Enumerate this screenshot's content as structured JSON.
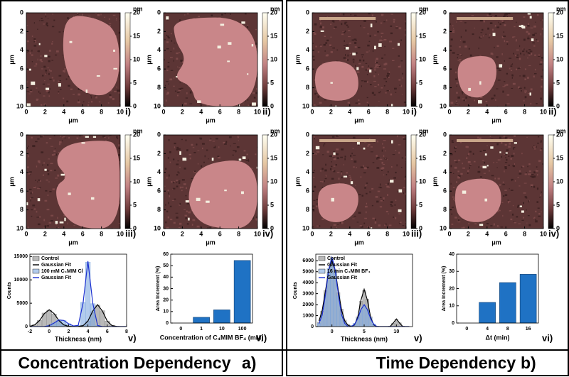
{
  "sections": [
    {
      "title": "Concentration Dependency",
      "letter": "a)",
      "maps": {
        "labels": [
          "i)",
          "ii)",
          "iii)",
          "iv)"
        ],
        "xlabel": "μm",
        "ylabel": "μm",
        "xlim": [
          0,
          10
        ],
        "ylim": [
          0,
          10
        ],
        "xticks": [
          0,
          2,
          4,
          6,
          8,
          10
        ],
        "yticks": [
          0,
          2,
          4,
          6,
          8,
          10
        ],
        "colorbar": {
          "unit": "nm",
          "lim": [
            0,
            20
          ],
          "ticks": [
            0,
            5,
            10,
            15,
            20
          ]
        }
      },
      "histogram": {
        "type": "histogram",
        "label": "v)",
        "xlabel": "Thickness (nm)",
        "ylabel": "Counts",
        "xlim": [
          -2,
          8
        ],
        "ylim": [
          0,
          15500
        ],
        "xticks": [
          -2,
          0,
          2,
          4,
          6,
          8
        ],
        "yticks": [
          0,
          5000,
          10000,
          15000
        ],
        "x": [
          -2,
          -1.5,
          -1,
          -0.5,
          0,
          0.5,
          1,
          1.5,
          2,
          2.5,
          3,
          3.5,
          4,
          4.5,
          5,
          5.5,
          6,
          6.5,
          7,
          7.5,
          8
        ],
        "series": [
          {
            "name": "Control",
            "style": "bars",
            "color": "#8a8a8a",
            "values": [
              100,
              400,
              1300,
              2900,
              3500,
              2700,
              1200,
              400,
              100,
              50,
              100,
              300,
              1200,
              3200,
              4600,
              3400,
              1200,
              300,
              100,
              0,
              0
            ]
          },
          {
            "name": "Gaussian Fit",
            "style": "line",
            "color": "#000000",
            "values": [
              61,
              360,
              1296,
              2790,
              3600,
              2790,
              1296,
              360,
              61,
              0,
              19,
              207,
              1175,
              3323,
              4700,
              3323,
              1175,
              207,
              19,
              0,
              0
            ]
          },
          {
            "name": "100 mM C₄MIM Cl",
            "style": "bars",
            "color": "#7fa8e0",
            "values": [
              0,
              0,
              0,
              50,
              250,
              800,
              1400,
              1300,
              600,
              150,
              300,
              5200,
              13800,
              4900,
              250,
              0,
              0,
              0,
              0,
              0,
              0
            ]
          },
          {
            "name": "Gaussian Fit",
            "style": "line",
            "color": "#1a2fd0",
            "values": [
              0,
              0,
              0,
              27,
              203,
              759,
              1419,
              1324,
              615,
              143,
              255,
              5040,
              14000,
              5040,
              238,
              0,
              0,
              0,
              0,
              0,
              0
            ]
          }
        ]
      },
      "bar": {
        "type": "bar",
        "label": "vi)",
        "xlabel": "Concentration of C₄MIM BF₄ (mM)",
        "ylabel": "Area Increment (%)",
        "categories": [
          "0",
          "1",
          "10",
          "100"
        ],
        "values": [
          0,
          5,
          11.5,
          54.5
        ],
        "color": "#1f72c4",
        "ylim": [
          0,
          60
        ],
        "yticks": [
          0,
          10,
          20,
          30,
          40,
          50,
          60
        ]
      }
    },
    {
      "title": "Time Dependency",
      "letter": "b)",
      "maps": {
        "labels": [
          "i)",
          "ii)",
          "iii)",
          "iv)"
        ],
        "xlabel": "μm",
        "ylabel": "μm",
        "xlim": [
          0,
          10
        ],
        "ylim": [
          0,
          10
        ],
        "xticks": [
          0,
          2,
          4,
          6,
          8,
          10
        ],
        "yticks": [
          0,
          2,
          4,
          6,
          8,
          10
        ],
        "colorbar": {
          "unit": "nm",
          "lim": [
            0,
            20
          ],
          "ticks": [
            0,
            5,
            10,
            15,
            20
          ]
        }
      },
      "histogram": {
        "type": "histogram",
        "label": "v)",
        "xlabel": "Thickness (nm)",
        "ylabel": "Counts",
        "xlim": [
          -2.5,
          12.5
        ],
        "ylim": [
          0,
          6600
        ],
        "xticks": [
          0,
          5,
          10
        ],
        "yticks": [
          0,
          1000,
          2000,
          3000,
          4000,
          5000,
          6000
        ],
        "x": [
          -2,
          -1.5,
          -1,
          -0.5,
          0,
          0.5,
          1,
          1.5,
          2,
          2.5,
          3,
          3.5,
          4,
          4.5,
          5,
          5.5,
          6,
          6.5,
          7,
          7.5,
          8,
          8.5,
          9,
          9.5,
          10,
          10.5,
          11,
          11.5,
          12
        ],
        "series": [
          {
            "name": "Control",
            "style": "bars",
            "color": "#8a8a8a",
            "values": [
              400,
              1400,
              3300,
              5000,
              5900,
              5200,
              3100,
              1600,
              600,
              200,
              100,
              200,
              900,
              2300,
              3300,
              2500,
              900,
              200,
              50,
              0,
              0,
              0,
              50,
              300,
              650,
              350,
              50,
              0,
              0
            ]
          },
          {
            "name": "Gaussian Fit",
            "style": "line",
            "color": "#000000",
            "values": [
              510,
              1500,
              3240,
              5142,
              6000,
              5142,
              3240,
              1500,
              510,
              126,
              0,
              150,
              850,
              2404,
              3400,
              2404,
              850,
              150,
              0,
              0,
              0,
              0,
              0,
              320,
              700,
              320,
              0,
              0,
              0
            ]
          },
          {
            "name": "16 min C₄MIM BF₄",
            "style": "bars",
            "color": "#7fa8e0",
            "values": [
              300,
              1100,
              2900,
              5300,
              6200,
              5000,
              2800,
              1100,
              400,
              150,
              100,
              300,
              800,
              1500,
              1900,
              1500,
              800,
              250,
              50,
              0,
              0,
              0,
              0,
              0,
              0,
              0,
              0,
              0,
              0
            ]
          },
          {
            "name": "Gaussian Fit",
            "style": "line",
            "color": "#1a2fd0",
            "values": [
              277,
              1071,
              2898,
              5166,
              6300,
              5166,
              2898,
              1071,
              277,
              0,
              0,
              200,
              720,
              1550,
              2000,
              1550,
              720,
              200,
              0,
              0,
              0,
              0,
              0,
              0,
              0,
              0,
              0,
              0,
              0
            ]
          }
        ]
      },
      "bar": {
        "type": "bar",
        "label": "vi)",
        "xlabel": "Δt (min)",
        "ylabel": "Area Increment (%)",
        "categories": [
          "0",
          "4",
          "8",
          "16"
        ],
        "values": [
          0,
          12,
          23.5,
          28.3
        ],
        "color": "#1f72c4",
        "ylim": [
          0,
          40
        ],
        "yticks": [
          0,
          10,
          20,
          30,
          40
        ]
      }
    }
  ]
}
